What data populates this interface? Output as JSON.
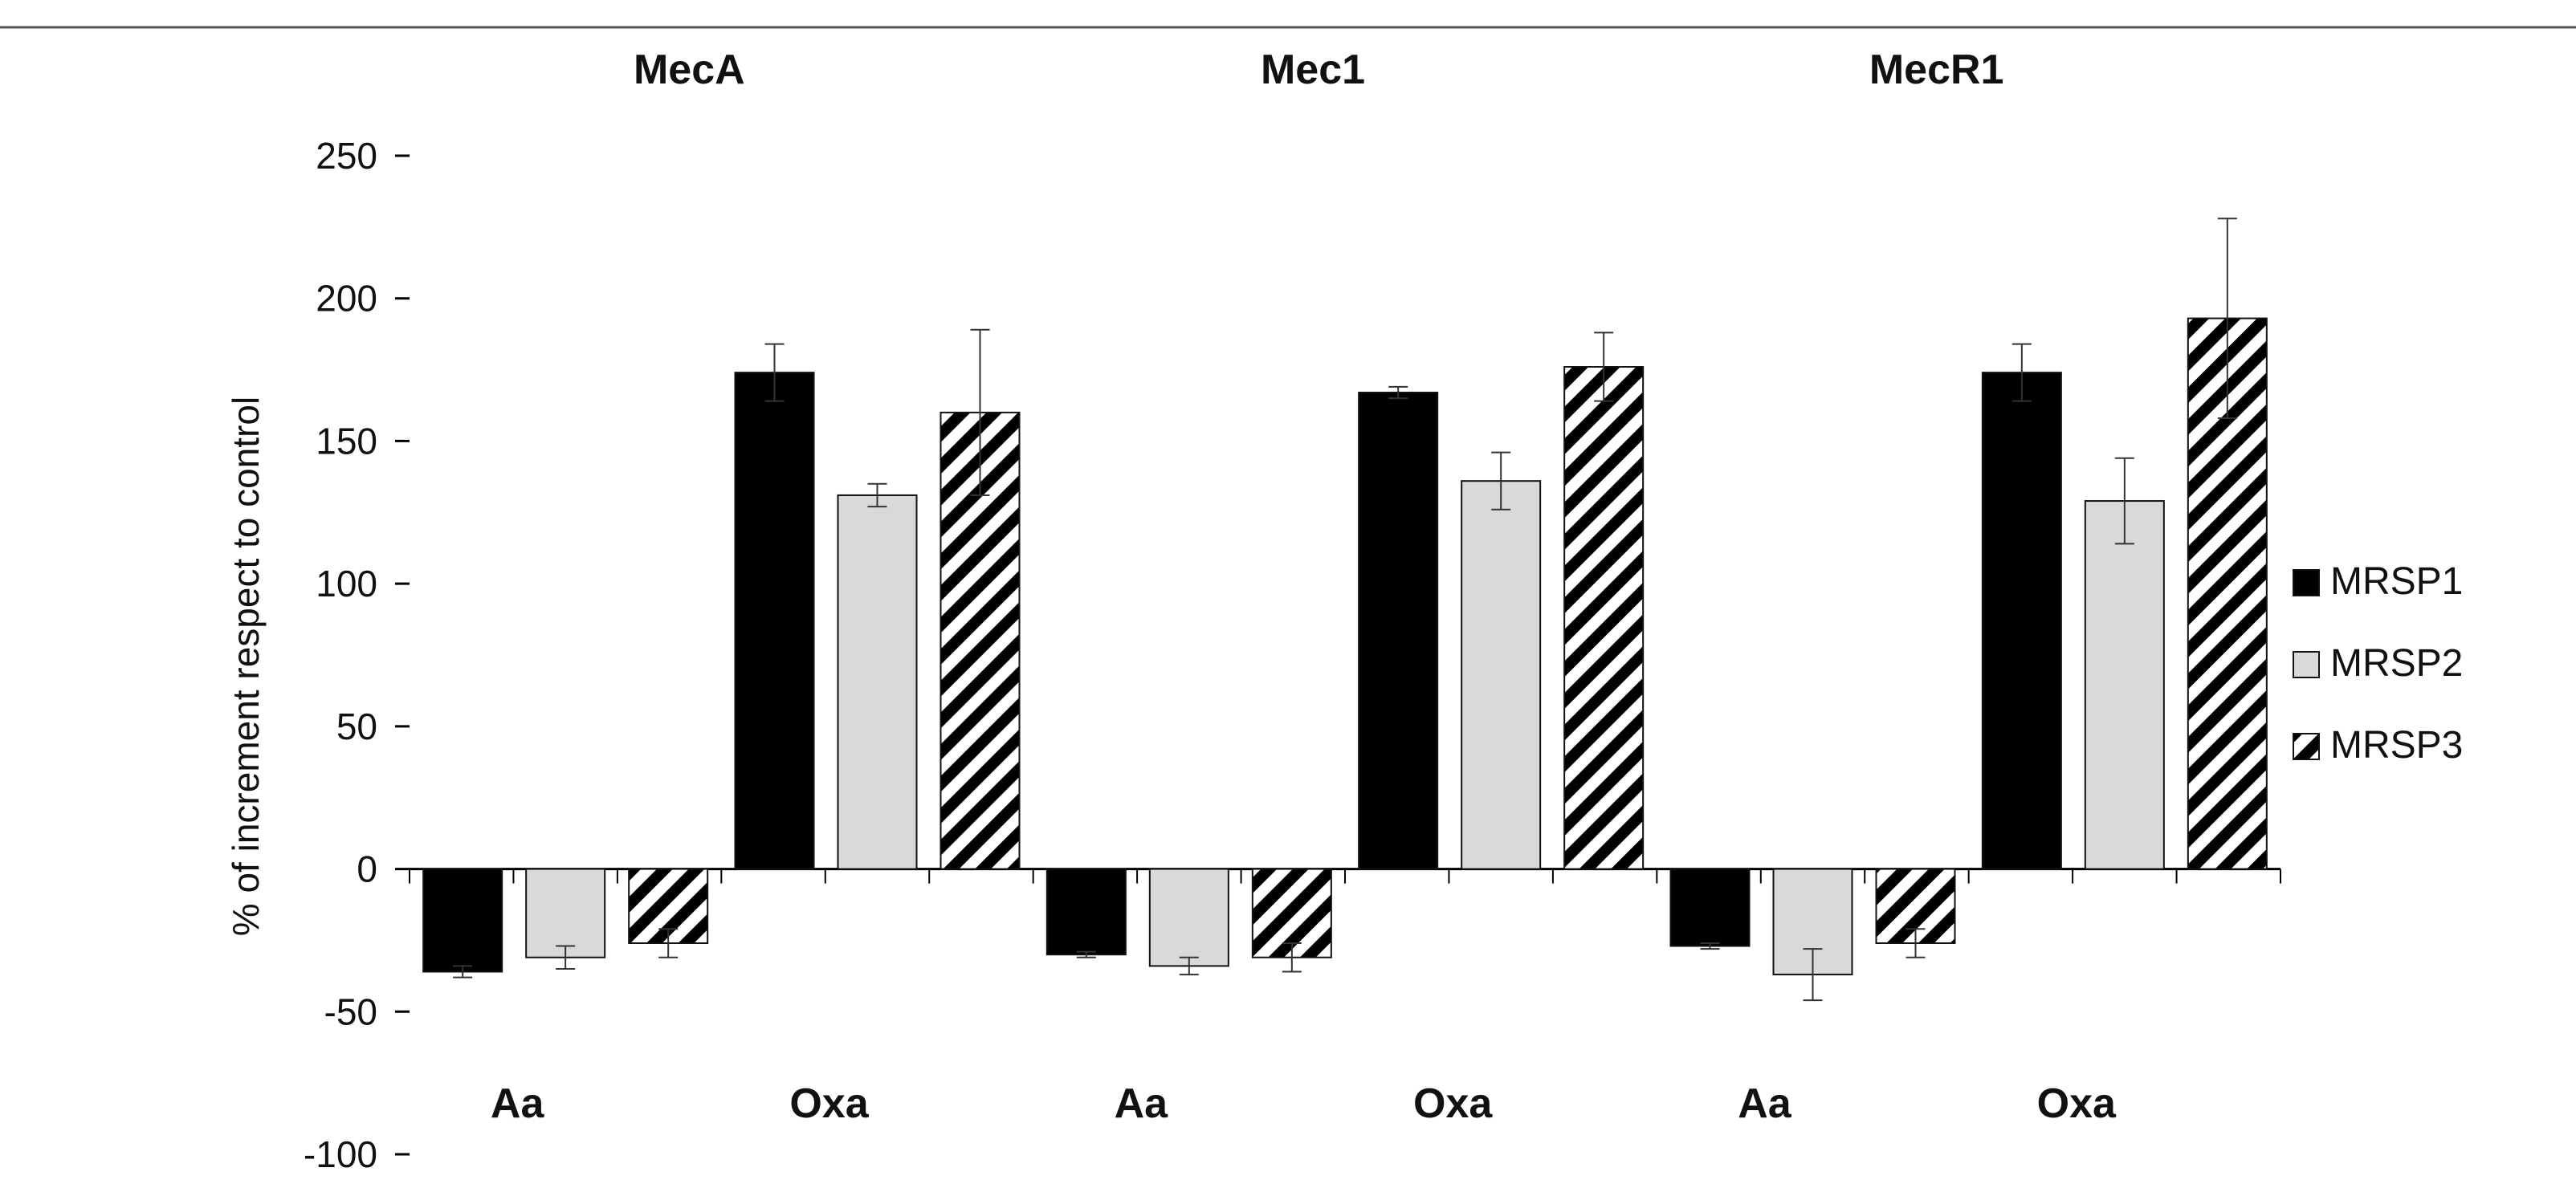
{
  "chart_data": {
    "type": "bar",
    "ylabel": "% of increment respect to control",
    "ylim": [
      -100,
      250
    ],
    "yticks": [
      250,
      200,
      150,
      100,
      50,
      0,
      -50,
      -100
    ],
    "groups": [
      "MecA",
      "Mec1",
      "MecR1"
    ],
    "conditions": [
      "Aa",
      "Oxa"
    ],
    "categories": [
      "MecA Aa",
      "MecA Oxa",
      "Mec1 Aa",
      "Mec1 Oxa",
      "MecR1 Aa",
      "MecR1 Oxa"
    ],
    "legend_position": "right",
    "series": [
      {
        "name": "MRSP1",
        "pattern": "solid-black",
        "values": [
          -36,
          174,
          -30,
          167,
          -27,
          174
        ],
        "errors": [
          2,
          10,
          1,
          2,
          1,
          10
        ]
      },
      {
        "name": "MRSP2",
        "pattern": "solid-lightgray",
        "values": [
          -31,
          131,
          -34,
          136,
          -37,
          129
        ],
        "errors": [
          4,
          4,
          3,
          10,
          9,
          15
        ]
      },
      {
        "name": "MRSP3",
        "pattern": "diagonal-stripes",
        "values": [
          -26,
          160,
          -31,
          176,
          -26,
          193
        ],
        "errors": [
          5,
          29,
          5,
          12,
          5,
          35
        ]
      }
    ]
  },
  "colors": {
    "MRSP1": "#000000",
    "MRSP2": "#d9d9d9",
    "MRSP3_stripe": "#000000",
    "axis": "#000000"
  }
}
